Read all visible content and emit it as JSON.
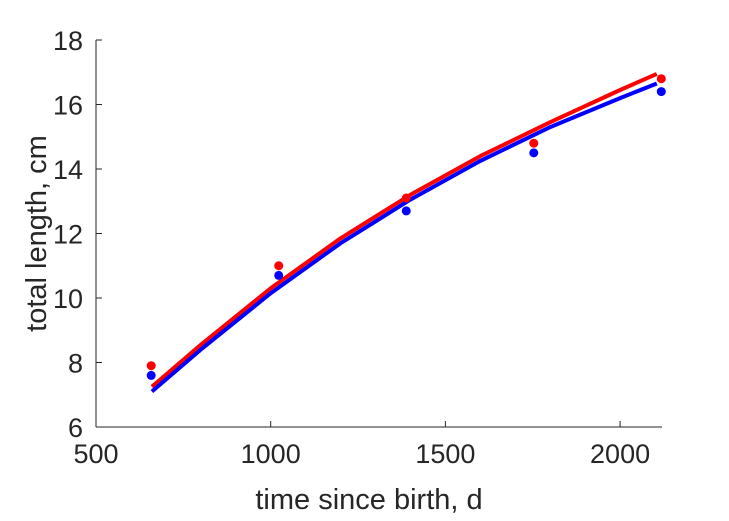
{
  "chart_data": {
    "type": "scatter",
    "xlabel": "time since birth, d",
    "ylabel": "total length, cm",
    "xlim": [
      500,
      2120
    ],
    "ylim": [
      6,
      18
    ],
    "xticks": [
      500,
      1000,
      1500,
      2000
    ],
    "yticks": [
      6,
      8,
      10,
      12,
      14,
      16,
      18
    ],
    "grid": false,
    "box": false,
    "colors": {
      "red": "#ff0000",
      "blue": "#0000ff",
      "axis": "#262626"
    },
    "series": [
      {
        "color": "#ff0000",
        "points": {
          "x": [
            658,
            1023,
            1388,
            1753,
            2118
          ],
          "y": [
            7.9,
            11.0,
            13.1,
            14.8,
            16.8
          ]
        },
        "curve": {
          "x": [
            660,
            800,
            1000,
            1200,
            1400,
            1600,
            1800,
            2000,
            2105
          ],
          "y": [
            7.25,
            8.55,
            10.3,
            11.85,
            13.2,
            14.4,
            15.45,
            16.45,
            16.95
          ]
        }
      },
      {
        "color": "#0000ff",
        "points": {
          "x": [
            658,
            1023,
            1388,
            1753,
            2118
          ],
          "y": [
            7.6,
            10.7,
            12.7,
            14.5,
            16.4
          ]
        },
        "curve": {
          "x": [
            660,
            800,
            1000,
            1200,
            1400,
            1600,
            1800,
            2000,
            2105
          ],
          "y": [
            7.1,
            8.4,
            10.15,
            11.7,
            13.05,
            14.25,
            15.3,
            16.2,
            16.65
          ]
        }
      }
    ]
  }
}
